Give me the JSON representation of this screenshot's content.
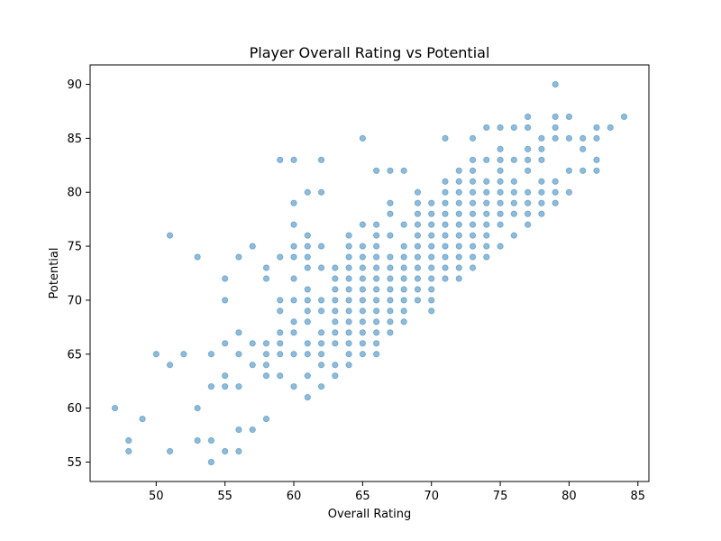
{
  "chart_data": {
    "type": "scatter",
    "title": "Player Overall Rating vs Potential",
    "xlabel": "Overall Rating",
    "ylabel": "Potential",
    "xlim": [
      45.2,
      85.8
    ],
    "ylim": [
      53.2,
      91.8
    ],
    "xticks": [
      50,
      55,
      60,
      65,
      70,
      75,
      80,
      85
    ],
    "yticks": [
      55,
      60,
      65,
      70,
      75,
      80,
      85,
      90
    ],
    "grid": false,
    "marker_color": "#1f77b4",
    "marker_alpha": 0.5,
    "points": [
      [
        47,
        60
      ],
      [
        48,
        57
      ],
      [
        48,
        56
      ],
      [
        49,
        59
      ],
      [
        50,
        65
      ],
      [
        51,
        64
      ],
      [
        51,
        56
      ],
      [
        51,
        76
      ],
      [
        52,
        65
      ],
      [
        53,
        74
      ],
      [
        53,
        60
      ],
      [
        53,
        57
      ],
      [
        54,
        65
      ],
      [
        54,
        62
      ],
      [
        54,
        57
      ],
      [
        54,
        55
      ],
      [
        55,
        72
      ],
      [
        55,
        70
      ],
      [
        55,
        66
      ],
      [
        55,
        63
      ],
      [
        55,
        62
      ],
      [
        55,
        56
      ],
      [
        56,
        74
      ],
      [
        56,
        67
      ],
      [
        56,
        65
      ],
      [
        56,
        62
      ],
      [
        56,
        58
      ],
      [
        56,
        56
      ],
      [
        57,
        75
      ],
      [
        57,
        66
      ],
      [
        57,
        64
      ],
      [
        57,
        58
      ],
      [
        58,
        73
      ],
      [
        58,
        72
      ],
      [
        58,
        66
      ],
      [
        58,
        65
      ],
      [
        58,
        64
      ],
      [
        58,
        63
      ],
      [
        58,
        59
      ],
      [
        59,
        83
      ],
      [
        59,
        74
      ],
      [
        59,
        70
      ],
      [
        59,
        69
      ],
      [
        59,
        67
      ],
      [
        59,
        66
      ],
      [
        59,
        65
      ],
      [
        59,
        63
      ],
      [
        60,
        83
      ],
      [
        60,
        79
      ],
      [
        60,
        77
      ],
      [
        60,
        75
      ],
      [
        60,
        74
      ],
      [
        60,
        72
      ],
      [
        60,
        70
      ],
      [
        60,
        68
      ],
      [
        60,
        67
      ],
      [
        60,
        65
      ],
      [
        60,
        62
      ],
      [
        61,
        80
      ],
      [
        61,
        76
      ],
      [
        61,
        75
      ],
      [
        61,
        74
      ],
      [
        61,
        73
      ],
      [
        61,
        71
      ],
      [
        61,
        70
      ],
      [
        61,
        69
      ],
      [
        61,
        68
      ],
      [
        61,
        66
      ],
      [
        61,
        65
      ],
      [
        61,
        63
      ],
      [
        61,
        61
      ],
      [
        62,
        83
      ],
      [
        62,
        80
      ],
      [
        62,
        75
      ],
      [
        62,
        73
      ],
      [
        62,
        70
      ],
      [
        62,
        69
      ],
      [
        62,
        67
      ],
      [
        62,
        66
      ],
      [
        62,
        65
      ],
      [
        62,
        64
      ],
      [
        62,
        62
      ],
      [
        63,
        73
      ],
      [
        63,
        72
      ],
      [
        63,
        71
      ],
      [
        63,
        70
      ],
      [
        63,
        69
      ],
      [
        63,
        68
      ],
      [
        63,
        67
      ],
      [
        63,
        66
      ],
      [
        63,
        64
      ],
      [
        63,
        63
      ],
      [
        64,
        76
      ],
      [
        64,
        75
      ],
      [
        64,
        74
      ],
      [
        64,
        73
      ],
      [
        64,
        72
      ],
      [
        64,
        71
      ],
      [
        64,
        70
      ],
      [
        64,
        69
      ],
      [
        64,
        68
      ],
      [
        64,
        67
      ],
      [
        64,
        66
      ],
      [
        64,
        65
      ],
      [
        64,
        64
      ],
      [
        65,
        85
      ],
      [
        65,
        77
      ],
      [
        65,
        75
      ],
      [
        65,
        74
      ],
      [
        65,
        73
      ],
      [
        65,
        72
      ],
      [
        65,
        71
      ],
      [
        65,
        70
      ],
      [
        65,
        69
      ],
      [
        65,
        68
      ],
      [
        65,
        67
      ],
      [
        65,
        66
      ],
      [
        65,
        65
      ],
      [
        66,
        82
      ],
      [
        66,
        77
      ],
      [
        66,
        76
      ],
      [
        66,
        75
      ],
      [
        66,
        74
      ],
      [
        66,
        73
      ],
      [
        66,
        72
      ],
      [
        66,
        71
      ],
      [
        66,
        70
      ],
      [
        66,
        69
      ],
      [
        66,
        68
      ],
      [
        66,
        67
      ],
      [
        66,
        66
      ],
      [
        66,
        65
      ],
      [
        67,
        82
      ],
      [
        67,
        79
      ],
      [
        67,
        78
      ],
      [
        67,
        76
      ],
      [
        67,
        74
      ],
      [
        67,
        73
      ],
      [
        67,
        72
      ],
      [
        67,
        71
      ],
      [
        67,
        70
      ],
      [
        67,
        69
      ],
      [
        67,
        68
      ],
      [
        67,
        67
      ],
      [
        68,
        82
      ],
      [
        68,
        77
      ],
      [
        68,
        75
      ],
      [
        68,
        74
      ],
      [
        68,
        73
      ],
      [
        68,
        72
      ],
      [
        68,
        71
      ],
      [
        68,
        70
      ],
      [
        68,
        69
      ],
      [
        68,
        68
      ],
      [
        69,
        80
      ],
      [
        69,
        79
      ],
      [
        69,
        78
      ],
      [
        69,
        77
      ],
      [
        69,
        76
      ],
      [
        69,
        75
      ],
      [
        69,
        74
      ],
      [
        69,
        73
      ],
      [
        69,
        72
      ],
      [
        69,
        71
      ],
      [
        69,
        70
      ],
      [
        70,
        79
      ],
      [
        70,
        78
      ],
      [
        70,
        77
      ],
      [
        70,
        76
      ],
      [
        70,
        75
      ],
      [
        70,
        74
      ],
      [
        70,
        73
      ],
      [
        70,
        72
      ],
      [
        70,
        71
      ],
      [
        70,
        70
      ],
      [
        70,
        69
      ],
      [
        71,
        85
      ],
      [
        71,
        81
      ],
      [
        71,
        80
      ],
      [
        71,
        79
      ],
      [
        71,
        78
      ],
      [
        71,
        77
      ],
      [
        71,
        76
      ],
      [
        71,
        75
      ],
      [
        71,
        74
      ],
      [
        71,
        73
      ],
      [
        71,
        72
      ],
      [
        72,
        82
      ],
      [
        72,
        81
      ],
      [
        72,
        80
      ],
      [
        72,
        79
      ],
      [
        72,
        78
      ],
      [
        72,
        77
      ],
      [
        72,
        76
      ],
      [
        72,
        75
      ],
      [
        72,
        74
      ],
      [
        72,
        73
      ],
      [
        72,
        72
      ],
      [
        73,
        85
      ],
      [
        73,
        83
      ],
      [
        73,
        82
      ],
      [
        73,
        81
      ],
      [
        73,
        80
      ],
      [
        73,
        79
      ],
      [
        73,
        78
      ],
      [
        73,
        77
      ],
      [
        73,
        76
      ],
      [
        73,
        75
      ],
      [
        73,
        74
      ],
      [
        73,
        73
      ],
      [
        74,
        86
      ],
      [
        74,
        83
      ],
      [
        74,
        81
      ],
      [
        74,
        80
      ],
      [
        74,
        79
      ],
      [
        74,
        78
      ],
      [
        74,
        77
      ],
      [
        74,
        76
      ],
      [
        74,
        75
      ],
      [
        74,
        74
      ],
      [
        75,
        86
      ],
      [
        75,
        84
      ],
      [
        75,
        83
      ],
      [
        75,
        82
      ],
      [
        75,
        81
      ],
      [
        75,
        80
      ],
      [
        75,
        79
      ],
      [
        75,
        78
      ],
      [
        75,
        77
      ],
      [
        75,
        75
      ],
      [
        76,
        86
      ],
      [
        76,
        83
      ],
      [
        76,
        81
      ],
      [
        76,
        80
      ],
      [
        76,
        79
      ],
      [
        76,
        78
      ],
      [
        76,
        76
      ],
      [
        77,
        87
      ],
      [
        77,
        86
      ],
      [
        77,
        84
      ],
      [
        77,
        83
      ],
      [
        77,
        82
      ],
      [
        77,
        80
      ],
      [
        77,
        79
      ],
      [
        77,
        78
      ],
      [
        77,
        77
      ],
      [
        78,
        85
      ],
      [
        78,
        84
      ],
      [
        78,
        83
      ],
      [
        78,
        81
      ],
      [
        78,
        80
      ],
      [
        78,
        79
      ],
      [
        78,
        78
      ],
      [
        79,
        90
      ],
      [
        79,
        87
      ],
      [
        79,
        86
      ],
      [
        79,
        85
      ],
      [
        79,
        81
      ],
      [
        79,
        80
      ],
      [
        79,
        79
      ],
      [
        80,
        87
      ],
      [
        80,
        85
      ],
      [
        80,
        82
      ],
      [
        80,
        80
      ],
      [
        81,
        85
      ],
      [
        81,
        84
      ],
      [
        81,
        82
      ],
      [
        82,
        86
      ],
      [
        82,
        85
      ],
      [
        82,
        83
      ],
      [
        82,
        82
      ],
      [
        83,
        86
      ],
      [
        84,
        87
      ]
    ]
  }
}
